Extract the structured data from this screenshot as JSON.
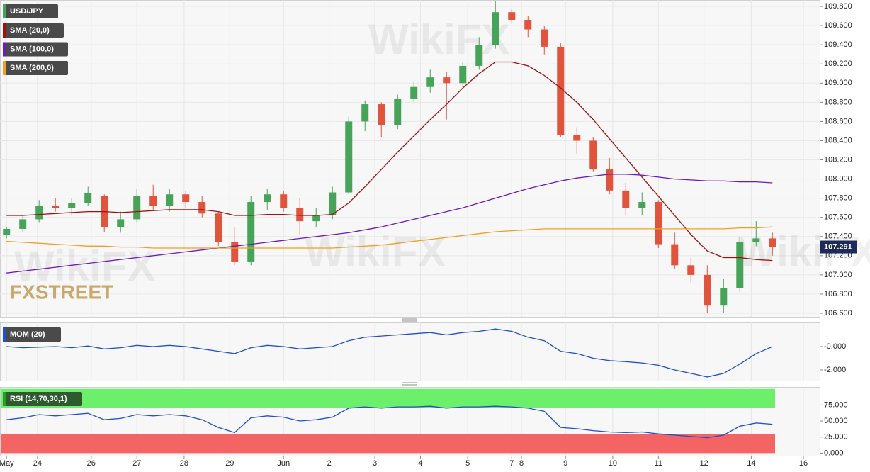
{
  "chart_data": [
    {
      "type": "candlestick",
      "name": "USD/JPY",
      "up_color": "#46a357",
      "down_color": "#e0533d",
      "open": [
        107.42,
        107.48,
        107.58,
        107.72,
        107.7,
        107.75,
        107.82,
        107.5,
        107.58,
        107.82,
        107.72,
        107.84,
        107.76,
        107.64,
        107.34,
        107.14,
        107.76,
        107.84,
        107.7,
        107.56,
        107.62,
        107.86,
        108.6,
        108.78,
        108.56,
        108.84,
        108.96,
        109.06,
        109.0,
        109.18,
        109.4,
        109.74,
        109.66,
        109.56,
        109.38,
        108.46,
        108.4,
        108.1,
        107.88,
        107.7,
        107.76,
        107.32,
        107.1,
        107.0,
        106.68,
        106.86,
        107.34,
        107.38
      ],
      "high": [
        107.5,
        107.62,
        107.78,
        107.8,
        107.8,
        107.92,
        107.84,
        107.66,
        107.9,
        107.94,
        107.9,
        107.88,
        107.82,
        107.66,
        107.5,
        107.82,
        107.9,
        107.88,
        107.8,
        107.7,
        107.92,
        108.65,
        108.82,
        108.8,
        108.88,
        109.02,
        109.14,
        109.12,
        109.22,
        109.48,
        109.86,
        109.78,
        109.7,
        109.6,
        109.42,
        108.54,
        108.44,
        108.22,
        107.96,
        107.86,
        107.78,
        107.44,
        107.18,
        107.1,
        106.96,
        107.4,
        107.56,
        107.44
      ],
      "low": [
        107.38,
        107.45,
        107.55,
        107.66,
        107.62,
        107.72,
        107.45,
        107.44,
        107.55,
        107.68,
        107.66,
        107.7,
        107.6,
        107.3,
        107.1,
        107.1,
        107.68,
        107.66,
        107.42,
        107.5,
        107.58,
        107.84,
        108.5,
        108.44,
        108.52,
        108.8,
        108.9,
        108.62,
        108.96,
        109.14,
        109.36,
        109.62,
        109.48,
        109.3,
        108.44,
        108.26,
        108.08,
        107.84,
        107.62,
        107.62,
        107.28,
        107.06,
        106.92,
        106.6,
        106.6,
        106.82,
        107.3,
        107.2
      ],
      "close": [
        107.48,
        107.58,
        107.72,
        107.7,
        107.75,
        107.85,
        107.5,
        107.58,
        107.82,
        107.72,
        107.84,
        107.76,
        107.64,
        107.34,
        107.14,
        107.76,
        107.84,
        107.7,
        107.56,
        107.62,
        107.86,
        108.6,
        108.78,
        108.56,
        108.84,
        108.96,
        109.06,
        109.0,
        109.18,
        109.4,
        109.74,
        109.66,
        109.56,
        109.38,
        108.46,
        108.4,
        108.1,
        107.88,
        107.7,
        107.76,
        107.32,
        107.1,
        107.0,
        106.68,
        106.86,
        107.34,
        107.38,
        107.29
      ],
      "series": [
        {
          "name": "SMA (20,0)",
          "color": "#a01010",
          "values": [
            107.62,
            107.62,
            107.63,
            107.64,
            107.65,
            107.66,
            107.66,
            107.65,
            107.66,
            107.67,
            107.68,
            107.68,
            107.68,
            107.66,
            107.62,
            107.62,
            107.63,
            107.63,
            107.62,
            107.62,
            107.63,
            107.75,
            107.92,
            108.1,
            108.28,
            108.45,
            108.62,
            108.78,
            108.95,
            109.1,
            109.22,
            109.22,
            109.18,
            109.08,
            108.95,
            108.8,
            108.62,
            108.42,
            108.22,
            108.02,
            107.82,
            107.62,
            107.42,
            107.25,
            107.18,
            107.18,
            107.16,
            107.15
          ]
        },
        {
          "name": "SMA (100,0)",
          "color": "#6a1bc0",
          "values": [
            107.02,
            107.04,
            107.06,
            107.08,
            107.1,
            107.12,
            107.14,
            107.16,
            107.18,
            107.2,
            107.22,
            107.24,
            107.26,
            107.28,
            107.3,
            107.32,
            107.34,
            107.36,
            107.38,
            107.4,
            107.42,
            107.44,
            107.47,
            107.5,
            107.54,
            107.58,
            107.62,
            107.66,
            107.7,
            107.75,
            107.8,
            107.85,
            107.9,
            107.94,
            107.98,
            108.01,
            108.03,
            108.05,
            108.05,
            108.04,
            108.02,
            108.0,
            107.99,
            107.98,
            107.98,
            107.97,
            107.97,
            107.96
          ]
        },
        {
          "name": "SMA (200,0)",
          "color": "#f0a020",
          "values": [
            107.35,
            107.34,
            107.33,
            107.32,
            107.31,
            107.3,
            107.3,
            107.29,
            107.29,
            107.28,
            107.28,
            107.28,
            107.28,
            107.28,
            107.28,
            107.28,
            107.28,
            107.28,
            107.28,
            107.28,
            107.28,
            107.29,
            107.3,
            107.31,
            107.33,
            107.35,
            107.37,
            107.39,
            107.41,
            107.43,
            107.45,
            107.46,
            107.47,
            107.48,
            107.48,
            107.48,
            107.48,
            107.48,
            107.48,
            107.48,
            107.48,
            107.48,
            107.48,
            107.48,
            107.48,
            107.49,
            107.49,
            107.5
          ]
        }
      ],
      "last_price": 107.291,
      "last_price_color": "#1e2a5a",
      "logo": "FXSTREET",
      "watermark": "WikiFX",
      "xlim": [
        -0.4,
        49.9
      ],
      "ylim": [
        106.563,
        109.867
      ],
      "yticks": [
        {
          "value": 106.6,
          "label": "106.600"
        },
        {
          "value": 106.8,
          "label": "106.800"
        },
        {
          "value": 107.0,
          "label": "107.000"
        },
        {
          "value": 107.2,
          "label": "107.200"
        },
        {
          "value": 107.4,
          "label": "107.400"
        },
        {
          "value": 107.6,
          "label": "107.600"
        },
        {
          "value": 107.8,
          "label": "107.800"
        },
        {
          "value": 108.0,
          "label": "108.000"
        },
        {
          "value": 108.2,
          "label": "108.200"
        },
        {
          "value": 108.4,
          "label": "108.400"
        },
        {
          "value": 108.6,
          "label": "108.600"
        },
        {
          "value": 108.8,
          "label": "108.800"
        },
        {
          "value": 109.0,
          "label": "109.000"
        },
        {
          "value": 109.2,
          "label": "109.200"
        },
        {
          "value": 109.4,
          "label": "109.400"
        },
        {
          "value": 109.6,
          "label": "109.600"
        },
        {
          "value": 109.8,
          "label": "109.800"
        }
      ],
      "grid": true
    },
    {
      "type": "line",
      "series": [
        {
          "name": "MOM (20)",
          "color": "#2050d0",
          "values": [
            0,
            -0.1,
            -0.05,
            0,
            -0.1,
            0.05,
            -0.2,
            -0.1,
            0.1,
            0,
            0.1,
            0,
            -0.2,
            -0.4,
            -0.6,
            -0.1,
            0.1,
            0,
            -0.2,
            -0.1,
            0,
            0.5,
            0.8,
            0.9,
            1.0,
            1.1,
            1.2,
            1.0,
            1.2,
            1.3,
            1.5,
            1.3,
            0.8,
            0.5,
            -0.4,
            -0.6,
            -1.0,
            -1.2,
            -1.3,
            -1.4,
            -1.6,
            -2.0,
            -2.3,
            -2.6,
            -2.3,
            -1.5,
            -0.6,
            0
          ]
        }
      ],
      "xlim": [
        -0.4,
        49.9
      ],
      "ylim": [
        -2.91,
        2.06
      ],
      "yticks": [
        {
          "value": 0,
          "label": "-0.000"
        },
        {
          "value": -2,
          "label": "-2.000"
        }
      ]
    },
    {
      "type": "line",
      "series": [
        {
          "name": "RSI (14,70,30,1)",
          "color": "#2050d0",
          "values": [
            52,
            55,
            60,
            58,
            60,
            62,
            52,
            54,
            60,
            58,
            60,
            58,
            52,
            40,
            32,
            55,
            58,
            56,
            50,
            52,
            56,
            70,
            72,
            70,
            72,
            72,
            73,
            70,
            72,
            72,
            73,
            72,
            70,
            65,
            40,
            38,
            35,
            33,
            32,
            33,
            30,
            28,
            26,
            24,
            28,
            42,
            47,
            45
          ]
        }
      ],
      "bands": [
        {
          "range": [
            70,
            100
          ],
          "color": "#6cf06c"
        },
        {
          "range": [
            0,
            30
          ],
          "color": "#f46464"
        }
      ],
      "xlim": [
        -0.4,
        49.9
      ],
      "ylim": [
        -4,
        103
      ],
      "yticks": [
        {
          "value": 0,
          "label": "0.000"
        },
        {
          "value": 25,
          "label": "25.000"
        },
        {
          "value": 50,
          "label": "50.000"
        },
        {
          "value": 75,
          "label": "75.000"
        }
      ],
      "xticks": [
        {
          "value": 0,
          "label": "May"
        },
        {
          "value": 1.9,
          "label": "24"
        },
        {
          "value": 5.2,
          "label": "26"
        },
        {
          "value": 8,
          "label": "27"
        },
        {
          "value": 10.9,
          "label": "28"
        },
        {
          "value": 13.7,
          "label": "29"
        },
        {
          "value": 17,
          "label": "Jun"
        },
        {
          "value": 19.8,
          "label": "2"
        },
        {
          "value": 22.6,
          "label": "3"
        },
        {
          "value": 25.4,
          "label": "4"
        },
        {
          "value": 28.3,
          "label": "5"
        },
        {
          "value": 31,
          "label": "7"
        },
        {
          "value": 31.6,
          "label": "8"
        },
        {
          "value": 34.3,
          "label": "9"
        },
        {
          "value": 37.2,
          "label": "10"
        },
        {
          "value": 40,
          "label": "11"
        },
        {
          "value": 42.8,
          "label": "12"
        },
        {
          "value": 45.7,
          "label": "14"
        },
        {
          "value": 48.9,
          "label": "16"
        }
      ]
    }
  ]
}
